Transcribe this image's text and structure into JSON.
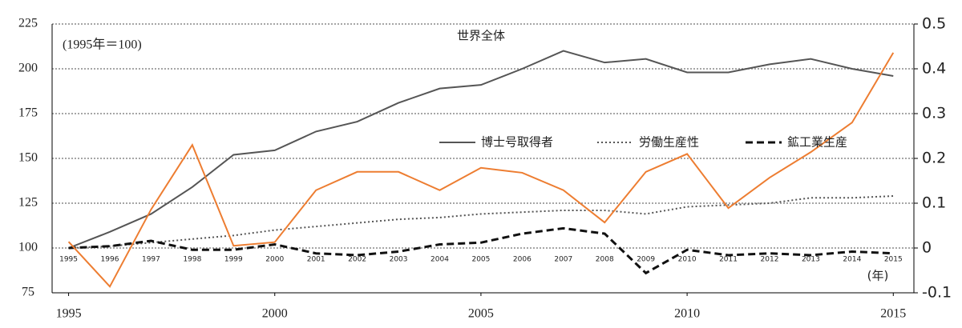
{
  "chart_data": {
    "type": "line",
    "title": "世界全体",
    "note": "(1995年＝100)",
    "x_unit": "(年)",
    "x": [
      1995,
      1996,
      1997,
      1998,
      1999,
      2000,
      2001,
      2002,
      2003,
      2004,
      2005,
      2006,
      2007,
      2008,
      2009,
      2010,
      2011,
      2012,
      2013,
      2014,
      2015
    ],
    "series": [
      {
        "name": "博士号取得者",
        "color": "#555555",
        "dash": "solid",
        "values": [
          100,
          109,
          119,
          134,
          152,
          154.5,
          165,
          170.5,
          181,
          189,
          191,
          200,
          210,
          203.5,
          205.5,
          198,
          198,
          202.5,
          205.5,
          200,
          196
        ]
      },
      {
        "name": "労働生産性",
        "color": "#555555",
        "dash": "dotted",
        "values": [
          100,
          101,
          103,
          105,
          107,
          110,
          112,
          114,
          116,
          117,
          119,
          120,
          121,
          121,
          119,
          123,
          124,
          125,
          128,
          128,
          129
        ]
      },
      {
        "name": "鉱工業生産",
        "color": "#111111",
        "dash": "dashed",
        "values": [
          100,
          101,
          104,
          99,
          99,
          102,
          97,
          96,
          98,
          102,
          103,
          108,
          111,
          108,
          86,
          99,
          96,
          97,
          96,
          98,
          97
        ]
      },
      {
        "color": "#ed7d31",
        "dash": "solid",
        "axis": "y2",
        "values": [
          0.014,
          -0.086,
          0.086,
          0.23,
          0.005,
          0.013,
          0.129,
          0.17,
          0.17,
          0.129,
          0.179,
          0.168,
          0.129,
          0.057,
          0.17,
          0.21,
          0.089,
          0.157,
          0.214,
          0.28,
          0.436
        ]
      }
    ],
    "xlim": [
      1994.6,
      2015.5
    ],
    "xticks": [
      1995,
      2000,
      2005,
      2010,
      2015
    ],
    "ylim": [
      75,
      225
    ],
    "yticks": [
      75,
      100,
      125,
      150,
      175,
      200,
      225
    ],
    "y2lim": [
      -0.1,
      0.5
    ],
    "y2ticks": [
      -0.1,
      0,
      0.1,
      0.2,
      0.3,
      0.4,
      0.5
    ],
    "grid": true
  }
}
